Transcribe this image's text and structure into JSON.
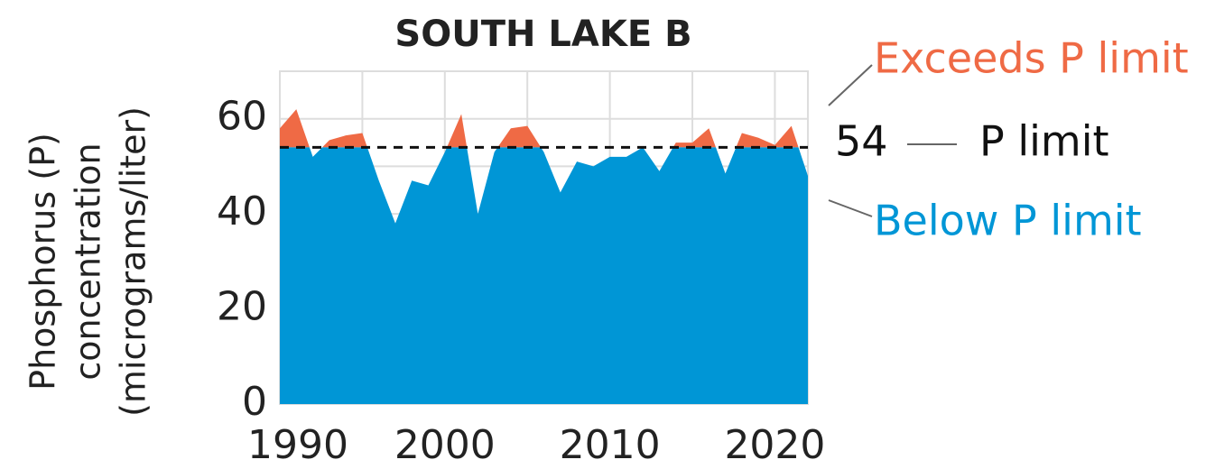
{
  "chart_data": {
    "type": "area_threshold",
    "title": "SOUTH LAKE B",
    "y_label": [
      "Phosphorus (P)",
      "concentration",
      "(micrograms/liter)"
    ],
    "x": [
      1990,
      1991,
      1992,
      1993,
      1994,
      1995,
      1996,
      1997,
      1998,
      1999,
      2000,
      2001,
      2002,
      2003,
      2004,
      2005,
      2006,
      2007,
      2008,
      2009,
      2010,
      2011,
      2012,
      2013,
      2014,
      2015,
      2016,
      2017,
      2018,
      2019,
      2020,
      2021,
      2022
    ],
    "values": [
      58,
      62,
      52,
      55.5,
      56.5,
      57,
      47,
      38,
      47,
      46,
      53,
      61,
      40,
      53,
      58,
      58.5,
      53,
      44.5,
      51,
      50,
      52,
      52,
      54,
      49,
      55,
      55,
      58,
      48.5,
      57,
      56,
      54.5,
      58.5,
      48
    ],
    "xlim": [
      1990,
      2022
    ],
    "xticks": [
      1990,
      2000,
      2010,
      2020
    ],
    "ylim": [
      0,
      70
    ],
    "yticks": [
      0,
      20,
      40,
      60
    ],
    "grid": true,
    "threshold": {
      "value": 54,
      "label": "P limit"
    },
    "above_label": "Exceeds P limit",
    "below_label": "Below P limit",
    "above_color": "#ef6a45",
    "below_color": "#0096d6"
  }
}
